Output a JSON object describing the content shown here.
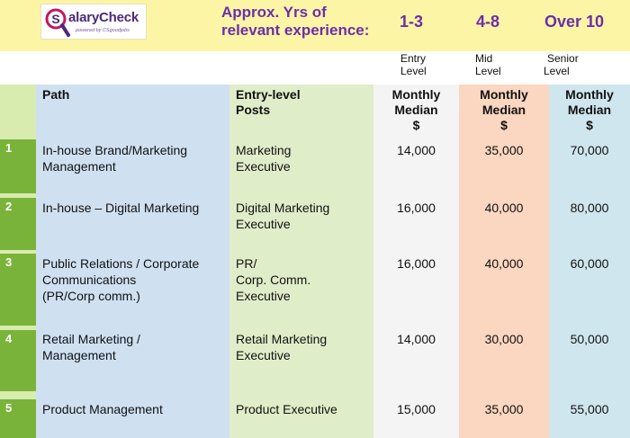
{
  "header": {
    "logo_text": "alaryCheck",
    "logo_tagline": "powered by CSgoodjobs",
    "experience_label": "Approx. Yrs of relevant experience:",
    "bands": [
      "1-3",
      "4-8",
      "Over 10"
    ],
    "levels": [
      {
        "line1": "Entry",
        "line2": "Level"
      },
      {
        "line1": "Mid",
        "line2": "Level"
      },
      {
        "line1": "Senior",
        "line2": "Level"
      }
    ]
  },
  "table": {
    "headers": {
      "path": "Path",
      "posts_line1": "Entry-level",
      "posts_line2": "Posts",
      "median_line1": "Monthly",
      "median_line2": "Median",
      "median_line3": "$"
    },
    "rows": [
      {
        "num": "1",
        "path": [
          "In-house Brand/Marketing",
          "Management"
        ],
        "post": [
          "Marketing",
          "Executive"
        ],
        "entry": "14,000",
        "mid": "35,000",
        "senior": "70,000"
      },
      {
        "num": "2",
        "path": [
          "In-house – Digital Marketing"
        ],
        "post": [
          "Digital Marketing",
          "Executive"
        ],
        "entry": "16,000",
        "mid": "40,000",
        "senior": "80,000"
      },
      {
        "num": "3",
        "path": [
          "Public Relations / Corporate",
          "Communications",
          "(PR/Corp comm.)"
        ],
        "post": [
          "PR/",
          "Corp. Comm.",
          "Executive"
        ],
        "entry": "16,000",
        "mid": "40,000",
        "senior": "60,000"
      },
      {
        "num": "4",
        "path": [
          "Retail Marketing /",
          "Management"
        ],
        "post": [
          "Retail Marketing",
          "Executive"
        ],
        "entry": "14,000",
        "mid": "30,000",
        "senior": "50,000"
      },
      {
        "num": "5",
        "path": [
          "Product Management"
        ],
        "post": [
          "Product Executive"
        ],
        "entry": "15,000",
        "mid": "35,000",
        "senior": "55,000"
      }
    ]
  },
  "colors": {
    "banner": "#fdf5a6",
    "accent_purple": "#6b2fa8",
    "row_number_green": "#7ab33a"
  }
}
